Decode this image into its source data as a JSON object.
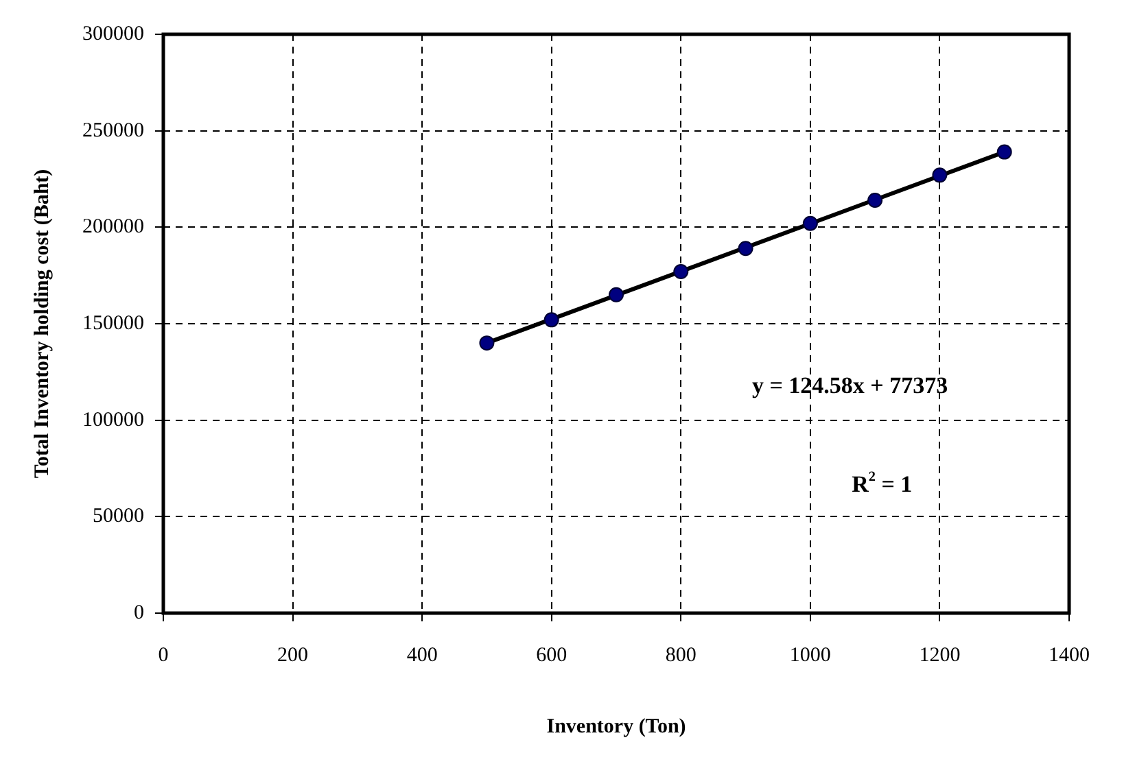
{
  "chart_data": {
    "type": "scatter",
    "xlabel": "Inventory (Ton)",
    "ylabel": "Total Inventory holding cost (Baht)",
    "x": [
      500,
      600,
      700,
      800,
      900,
      1000,
      1100,
      1200,
      1300
    ],
    "series": [
      {
        "type": "scatter",
        "color": "#000080",
        "values": [
          140000,
          152000,
          165000,
          177000,
          189000,
          202000,
          214000,
          227000,
          239000
        ]
      },
      {
        "type": "line",
        "marker": "none",
        "color": "#000000",
        "x": [
          500,
          1300
        ],
        "values": [
          140000,
          239000
        ]
      }
    ],
    "xlim": [
      0,
      1400
    ],
    "xticks": [
      0,
      200,
      400,
      600,
      800,
      1000,
      1200,
      1400
    ],
    "ylim": [
      0,
      300000
    ],
    "yticks": [
      0,
      50000,
      100000,
      150000,
      200000,
      250000,
      300000
    ],
    "grid": true,
    "marker": "circle",
    "annotations": [
      "y = 124.58x + 77373",
      "R$^{2}$ = 1"
    ]
  }
}
